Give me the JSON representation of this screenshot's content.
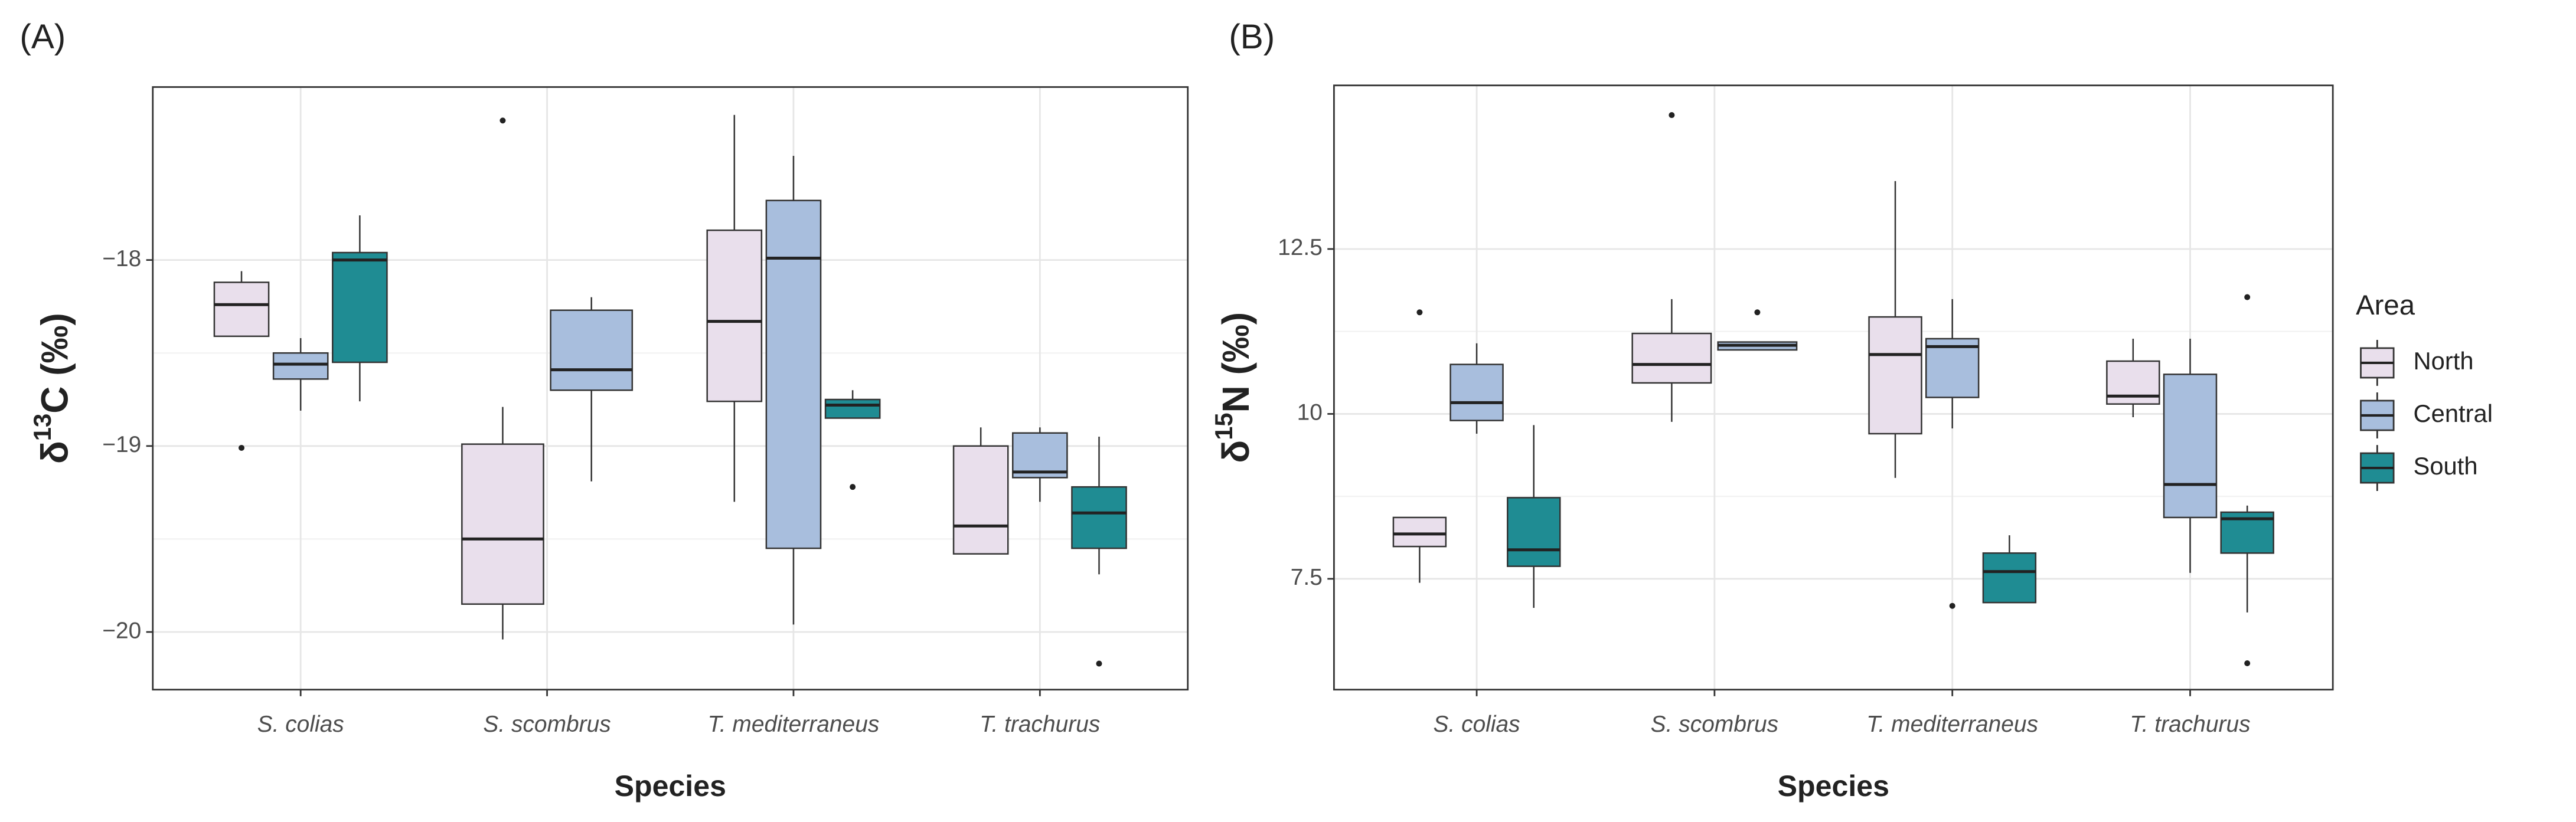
{
  "chart_data": [
    {
      "type": "box",
      "panel_label": "(A)",
      "ylabel": [
        "δ",
        "13",
        "C (‰)"
      ],
      "xlabel": "Species",
      "categories": [
        "S. colias",
        "S. scombrus",
        "T. mediterraneus",
        "T. trachurus"
      ],
      "ylim": [
        -20.31,
        -17.07
      ],
      "yticks": [
        {
          "value": -20,
          "label": "−20"
        },
        {
          "value": -19,
          "label": "−19"
        },
        {
          "value": -18,
          "label": "−18"
        }
      ],
      "grid": true,
      "series": [
        {
          "color": "#e9dfec",
          "values": [
            {
              "min": -18.41,
              "q1": -18.41,
              "median": -18.24,
              "q3": -18.12,
              "max": -18.06,
              "outliers": [
                -19.01
              ]
            },
            {
              "min": -20.04,
              "q1": -19.85,
              "median": -19.5,
              "q3": -18.99,
              "max": -18.79,
              "outliers": [
                -17.25
              ]
            },
            {
              "min": -19.3,
              "q1": -18.76,
              "median": -18.33,
              "q3": -17.84,
              "max": -17.22,
              "outliers": []
            },
            {
              "min": -19.58,
              "q1": -19.58,
              "median": -19.43,
              "q3": -19.0,
              "max": -18.9,
              "outliers": []
            }
          ]
        },
        {
          "color": "#a8bedd",
          "values": [
            {
              "min": -18.81,
              "q1": -18.64,
              "median": -18.56,
              "q3": -18.5,
              "max": -18.42,
              "outliers": []
            },
            {
              "min": -19.19,
              "q1": -18.7,
              "median": -18.59,
              "q3": -18.27,
              "max": -18.2,
              "outliers": []
            },
            {
              "min": -19.96,
              "q1": -19.55,
              "median": -17.99,
              "q3": -17.68,
              "max": -17.44,
              "outliers": []
            },
            {
              "min": -19.3,
              "q1": -19.17,
              "median": -19.14,
              "q3": -18.93,
              "max": -18.9,
              "outliers": []
            }
          ]
        },
        {
          "color": "#1f8c93",
          "values": [
            {
              "min": -18.76,
              "q1": -18.55,
              "median": -18.0,
              "q3": -17.96,
              "max": -17.76,
              "outliers": []
            },
            null,
            {
              "min": -18.85,
              "q1": -18.85,
              "median": -18.78,
              "q3": -18.75,
              "max": -18.7,
              "outliers": [
                -19.22
              ]
            },
            {
              "min": -19.69,
              "q1": -19.55,
              "median": -19.36,
              "q3": -19.22,
              "max": -18.95,
              "outliers": [
                -20.17
              ]
            }
          ]
        }
      ]
    },
    {
      "type": "box",
      "panel_label": "(B)",
      "ylabel": [
        "δ",
        "15",
        "N (‰)"
      ],
      "xlabel": "Species",
      "categories": [
        "S. colias",
        "S. scombrus",
        "T. mediterraneus",
        "T. trachurus"
      ],
      "ylim": [
        5.82,
        14.98
      ],
      "yticks": [
        7.5,
        10,
        12.5
      ],
      "grid": true,
      "legend": "right",
      "legend_title": "Area",
      "series": [
        {
          "name": "North",
          "color": "#e9dfec",
          "values": [
            {
              "min": 7.44,
              "q1": 7.99,
              "median": 8.18,
              "q3": 8.43,
              "max": 8.43,
              "outliers": [
                11.54
              ]
            },
            {
              "min": 9.88,
              "q1": 10.47,
              "median": 10.75,
              "q3": 11.22,
              "max": 11.74,
              "outliers": [
                14.53
              ]
            },
            {
              "min": 9.03,
              "q1": 9.7,
              "median": 10.9,
              "q3": 11.47,
              "max": 13.53,
              "outliers": []
            },
            {
              "min": 9.95,
              "q1": 10.15,
              "median": 10.27,
              "q3": 10.8,
              "max": 11.14,
              "outliers": []
            }
          ]
        },
        {
          "name": "Central",
          "color": "#a8bedd",
          "values": [
            {
              "min": 9.7,
              "q1": 9.9,
              "median": 10.17,
              "q3": 10.75,
              "max": 11.07,
              "outliers": []
            },
            {
              "min": 10.97,
              "q1": 10.97,
              "median": 11.04,
              "q3": 11.09,
              "max": 11.09,
              "outliers": [
                11.54
              ]
            },
            {
              "min": 9.78,
              "q1": 10.25,
              "median": 11.02,
              "q3": 11.14,
              "max": 11.74,
              "outliers": [
                7.09
              ]
            },
            {
              "min": 7.59,
              "q1": 8.43,
              "median": 8.93,
              "q3": 10.6,
              "max": 11.14,
              "outliers": []
            }
          ]
        },
        {
          "name": "South",
          "color": "#1f8c93",
          "values": [
            {
              "min": 7.06,
              "q1": 7.69,
              "median": 7.94,
              "q3": 8.73,
              "max": 9.83,
              "outliers": []
            },
            null,
            {
              "min": 7.14,
              "q1": 7.14,
              "median": 7.61,
              "q3": 7.89,
              "max": 8.16,
              "outliers": []
            },
            {
              "min": 6.99,
              "q1": 7.89,
              "median": 8.41,
              "q3": 8.51,
              "max": 8.61,
              "outliers": [
                11.77,
                6.22
              ]
            }
          ]
        }
      ]
    }
  ]
}
